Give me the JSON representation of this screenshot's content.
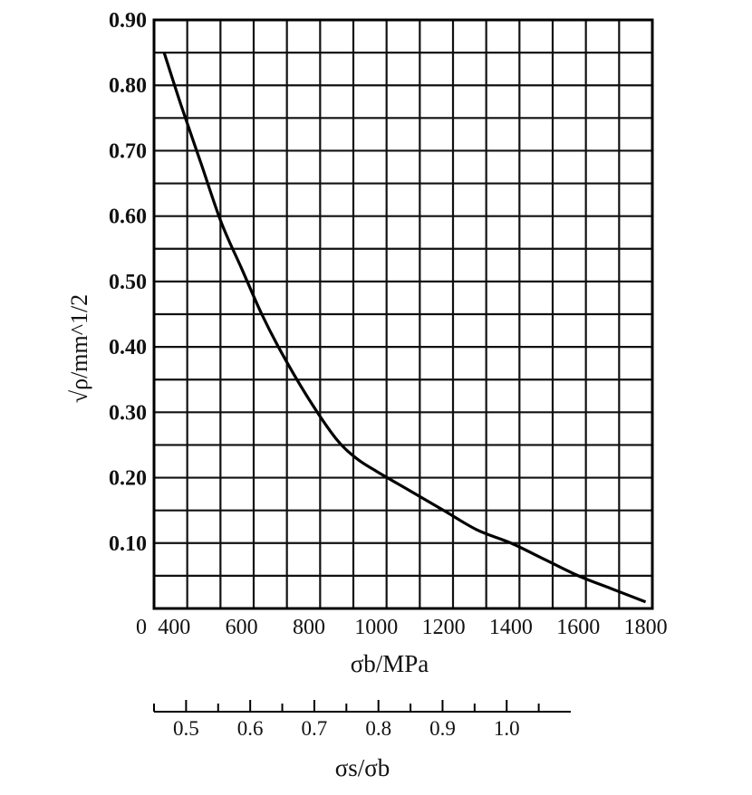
{
  "chart_data": {
    "type": "line",
    "xlabel": "σb/MPa",
    "ylabel": "√ρ/mm^1/2",
    "xlim": [
      340,
      1820
    ],
    "ylim": [
      0,
      0.9
    ],
    "x_origin_label": "0",
    "x_ticks": [
      400,
      600,
      800,
      1000,
      1200,
      1400,
      1600,
      1800
    ],
    "x_tick_labels": [
      "400",
      "600",
      "800",
      "1000",
      "1200",
      "1400",
      "1600",
      "1800"
    ],
    "y_ticks": [
      0.1,
      0.2,
      0.3,
      0.4,
      0.5,
      0.6,
      0.7,
      0.8,
      0.9
    ],
    "y_tick_labels": [
      "0.10",
      "0.20",
      "0.30",
      "0.40",
      "0.50",
      "0.60",
      "0.70",
      "0.80",
      "0.90"
    ],
    "grid": true,
    "series": [
      {
        "x": [
          370,
          420,
          480,
          540,
          600,
          660,
          720,
          800,
          880,
          940,
          1000,
          1100,
          1200,
          1300,
          1400,
          1500,
          1600,
          1700,
          1800
        ],
        "y": [
          0.85,
          0.77,
          0.68,
          0.59,
          0.52,
          0.45,
          0.39,
          0.32,
          0.26,
          0.23,
          0.21,
          0.18,
          0.15,
          0.12,
          0.1,
          0.075,
          0.05,
          0.03,
          0.01
        ]
      }
    ],
    "secondary_axis": {
      "label": "σs/σb",
      "ticks": [
        "0.5",
        "0.6",
        "0.7",
        "0.8",
        "0.9",
        "1.0"
      ],
      "range": [
        0.45,
        1.1
      ]
    }
  }
}
